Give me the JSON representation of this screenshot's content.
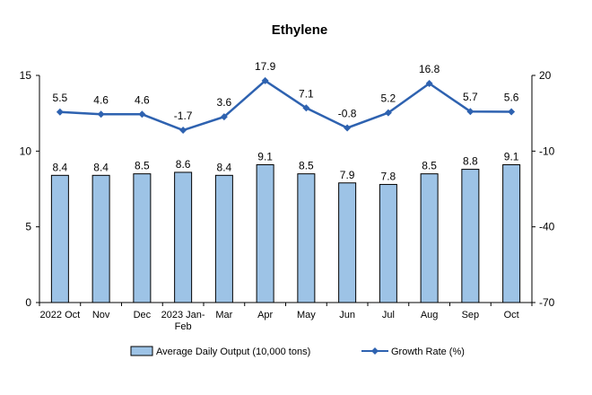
{
  "chart_data": {
    "type": "bar",
    "title": "Ethylene",
    "categories": [
      "2022 Oct",
      "Nov",
      "Dec",
      "2023 Jan-\nFeb",
      "Mar",
      "Apr",
      "May",
      "Jun",
      "Jul",
      "Aug",
      "Sep",
      "Oct"
    ],
    "series": [
      {
        "name": "Average Daily Output (10,000 tons)",
        "type": "bar",
        "axis": "left",
        "values": [
          8.4,
          8.4,
          8.5,
          8.6,
          8.4,
          9.1,
          8.5,
          7.9,
          7.8,
          8.5,
          8.8,
          9.1
        ],
        "labels": [
          "8.4",
          "8.4",
          "8.5",
          "8.6",
          "8.4",
          "9.1",
          "8.5",
          "7.9",
          "7.8",
          "8.5",
          "8.8",
          "9.1"
        ],
        "color": "#9dc3e6"
      },
      {
        "name": "Growth Rate (%)",
        "type": "line",
        "axis": "right",
        "values": [
          5.5,
          4.6,
          4.6,
          -1.7,
          3.6,
          17.9,
          7.1,
          -0.8,
          5.2,
          16.8,
          5.7,
          5.6
        ],
        "labels": [
          "5.5",
          "4.6",
          "4.6",
          "-1.7",
          "3.6",
          "17.9",
          "7.1",
          "-0.8",
          "5.2",
          "16.8",
          "5.7",
          "5.6"
        ],
        "color": "#2e62b0"
      }
    ],
    "y_left": {
      "min": 0,
      "max": 15,
      "ticks": [
        "0",
        "5",
        "10",
        "15"
      ]
    },
    "y_right": {
      "min": -70,
      "max": 20,
      "ticks": [
        "-70",
        "-40",
        "-10",
        "20"
      ]
    },
    "grid": false,
    "legend": "bottom"
  }
}
